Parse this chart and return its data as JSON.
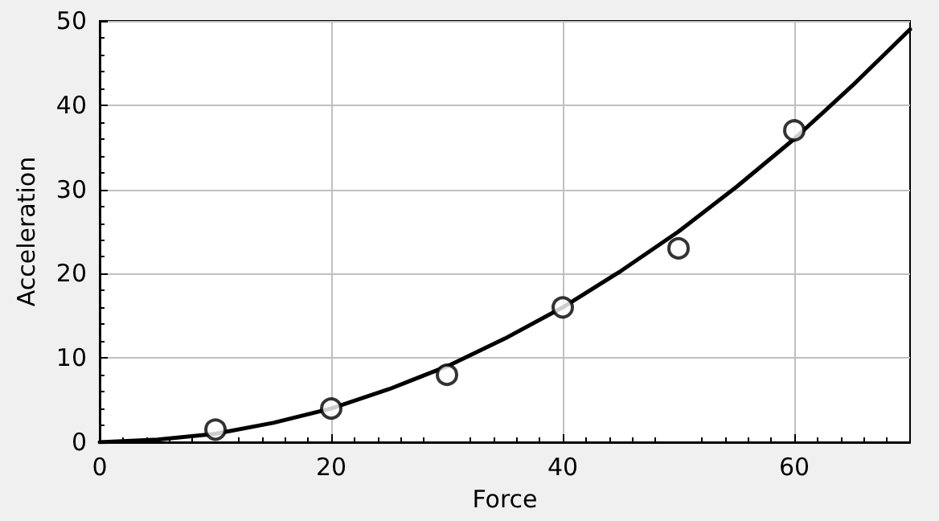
{
  "chart_data": {
    "type": "scatter",
    "xlabel": "Force",
    "ylabel": "Acceleration",
    "xlim": [
      0,
      70
    ],
    "xticks": [
      0,
      20,
      40,
      60
    ],
    "ylim": [
      0,
      50
    ],
    "yticks": [
      0,
      10,
      20,
      30,
      40,
      50
    ],
    "grid": true,
    "marker": "circle",
    "series": [
      {
        "color": "#000000",
        "x": [
          10,
          20,
          30,
          40,
          50,
          60
        ],
        "values": [
          1.5,
          4,
          8,
          16,
          23,
          37
        ]
      },
      {
        "type": "line",
        "color": "#000000",
        "marker": "none",
        "line_style": "solid",
        "x": [
          0,
          5,
          10,
          15,
          20,
          25,
          30,
          35,
          40,
          45,
          50,
          55,
          60,
          65,
          70
        ],
        "values": [
          0,
          0.3,
          1,
          2.3,
          4,
          6.3,
          9,
          12.3,
          16,
          20.3,
          25,
          30.3,
          36,
          42.3,
          49
        ]
      }
    ]
  }
}
